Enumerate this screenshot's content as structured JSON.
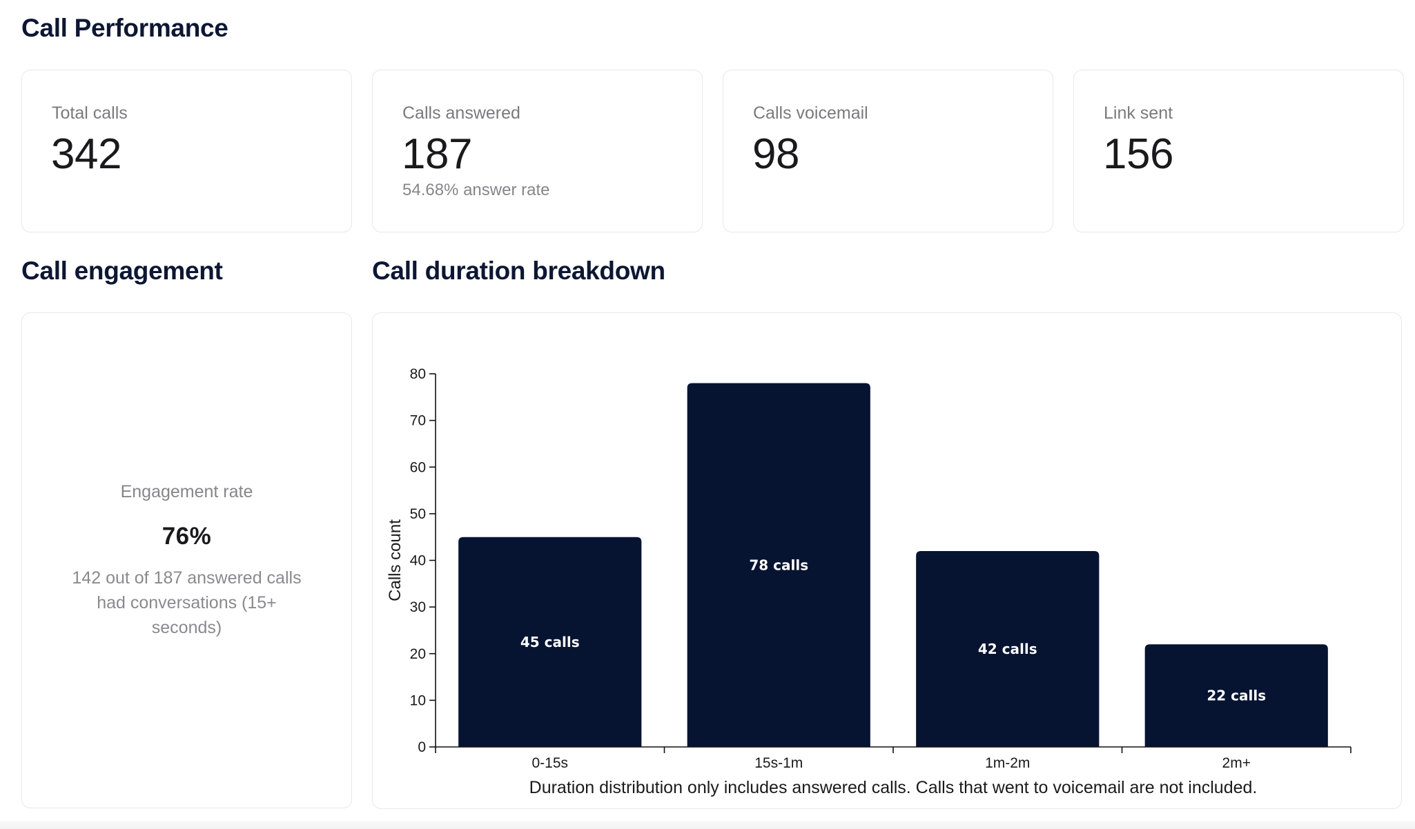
{
  "page": {
    "title": "Call Performance",
    "engagement_title": "Call engagement",
    "duration_title": "Call duration breakdown"
  },
  "stats": [
    {
      "label": "Total calls",
      "value": "342",
      "sub": ""
    },
    {
      "label": "Calls answered",
      "value": "187",
      "sub": "54.68% answer rate"
    },
    {
      "label": "Calls voicemail",
      "value": "98",
      "sub": ""
    },
    {
      "label": "Link sent",
      "value": "156",
      "sub": ""
    }
  ],
  "engagement": {
    "label": "Engagement rate",
    "value": "76%",
    "description": "142 out of 187 answered calls had conversations (15+ seconds)"
  },
  "colors": {
    "bar": "#061331",
    "title": "#0d1733"
  },
  "chart_data": {
    "type": "bar",
    "categories": [
      "0-15s",
      "15s-1m",
      "1m-2m",
      "2m+"
    ],
    "values": [
      45,
      78,
      42,
      22
    ],
    "data_labels": [
      "45 calls",
      "78 calls",
      "42 calls",
      "22 calls"
    ],
    "title": "",
    "xlabel": "",
    "ylabel": "Calls count",
    "ylim": [
      0,
      80
    ],
    "yticks": [
      0,
      10,
      20,
      30,
      40,
      50,
      60,
      70,
      80
    ],
    "grid": false,
    "footnote": "Duration distribution only includes answered calls. Calls that went to voicemail are not included."
  }
}
